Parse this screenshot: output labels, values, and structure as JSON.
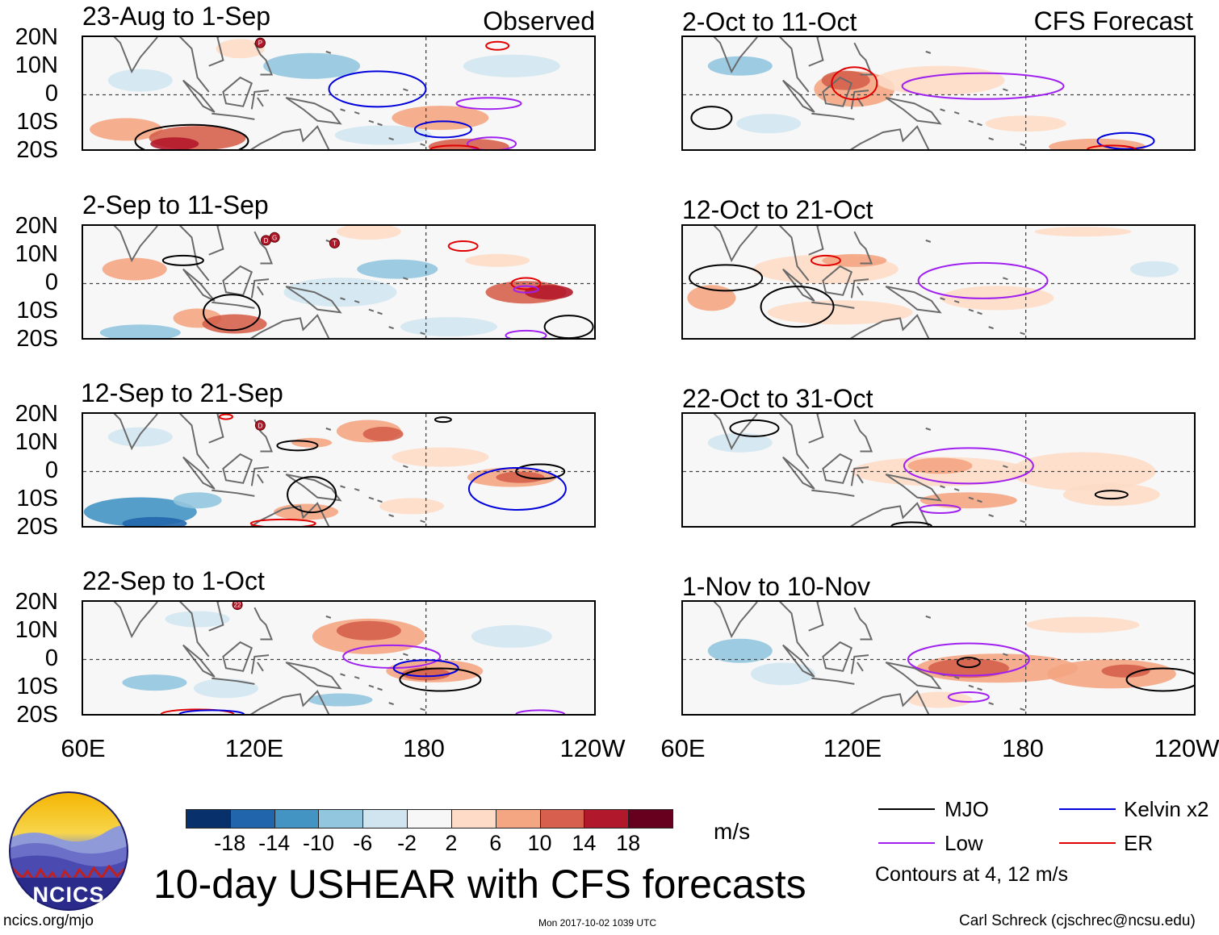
{
  "colors": {
    "mjo": "#000000",
    "low": "#a020f0",
    "kelvin": "#0000dd",
    "er": "#e00000",
    "land": "#6a6a6a"
  },
  "headers": {
    "observed": "Observed",
    "forecast": "CFS Forecast"
  },
  "panels": [
    {
      "id": "obs-1",
      "title": "23-Aug to 1-Sep",
      "group": "observed"
    },
    {
      "id": "obs-2",
      "title": "2-Sep to 11-Sep",
      "group": "observed"
    },
    {
      "id": "obs-3",
      "title": "12-Sep to 21-Sep",
      "group": "observed"
    },
    {
      "id": "obs-4",
      "title": "22-Sep to 1-Oct",
      "group": "observed"
    },
    {
      "id": "fc-1",
      "title": "2-Oct to 11-Oct",
      "group": "forecast"
    },
    {
      "id": "fc-2",
      "title": "12-Oct to 21-Oct",
      "group": "forecast"
    },
    {
      "id": "fc-3",
      "title": "22-Oct to 31-Oct",
      "group": "forecast"
    },
    {
      "id": "fc-4",
      "title": "1-Nov to 10-Nov",
      "group": "forecast"
    }
  ],
  "chart_data": {
    "type": "heatmap",
    "title": "10-day USHEAR with CFS forecasts",
    "variable": "USHEAR",
    "units": "m/s",
    "latitude_labels": [
      "20N",
      "10N",
      "0",
      "10S",
      "20S"
    ],
    "ylim": [
      -20,
      20
    ],
    "longitude_labels": [
      "60E",
      "120E",
      "180",
      "120W"
    ],
    "xlim_deg_east": [
      60,
      240
    ],
    "colorbar": {
      "tick_labels": [
        "-18",
        "-14",
        "-10",
        "-6",
        "-2",
        "2",
        "6",
        "10",
        "14",
        "18"
      ],
      "colors": [
        "#08306b",
        "#2166ac",
        "#4393c3",
        "#92c5de",
        "#d1e5f0",
        "#f7f7f7",
        "#fddbc7",
        "#f4a582",
        "#d6604d",
        "#b2182b",
        "#67001f"
      ]
    },
    "legend": [
      {
        "name": "MJO",
        "color": "#000000"
      },
      {
        "name": "Low",
        "color": "#a020f0"
      },
      {
        "name": "Kelvin x2",
        "color": "#0000dd"
      },
      {
        "name": "ER",
        "color": "#e00000"
      }
    ],
    "contour_note": "Contours at 4, 12 m/s",
    "tropical_cyclone_markers": [
      "P",
      "D",
      "G",
      "T",
      "D",
      "22"
    ]
  },
  "footer": {
    "logo_text": "NCICS",
    "site": "ncics.org/mjo",
    "timestamp": "Mon 2017-10-02 1039 UTC",
    "credit": "Carl Schreck (cjschrec@ncsu.edu)"
  }
}
